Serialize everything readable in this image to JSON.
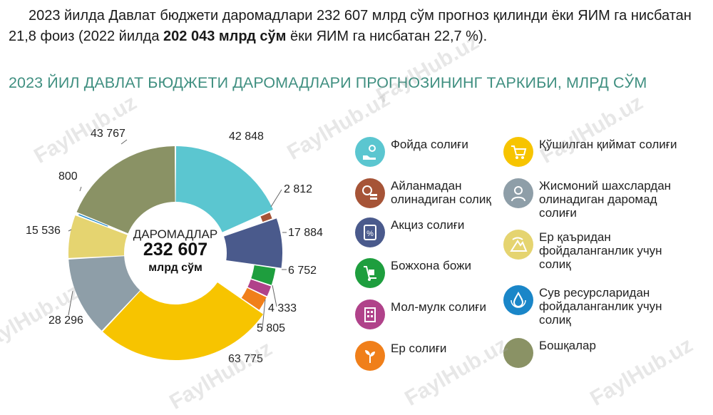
{
  "intro": {
    "part1": "2023 йилда Давлат бюджети даромадлари 232 607 млрд сўм прогноз қилинди ёки ЯИМ га нисбатан 21,8 фоиз (2022 йилда ",
    "bold": "202 043 млрд сўм",
    "part2": " ёки ЯИМ га нисбатан 22,7 %)."
  },
  "heading": "2023 ЙИЛ ДАВЛАТ БЮДЖЕТИ ДАРОМАДЛАРИ ПРОГНОЗИНИНГ ТАРКИБИ, МЛРД СЎМ",
  "watermark": "FaylHub.uz",
  "chart_data": {
    "type": "donut",
    "center": {
      "line1": "ДАРОМАДЛАР",
      "line2": "232 607",
      "line3": "млрд сўм"
    },
    "total": 232607,
    "slices": [
      {
        "label": "Фойда солиғи",
        "value": 42848,
        "value_text": "42 848",
        "color": "#5bc6d0",
        "icon": "coin-hand-icon"
      },
      {
        "label": "Айланмадан олинадиган солиқ",
        "value": 2812,
        "value_text": "2 812",
        "color": "#a65437",
        "icon": "coins-stack-icon"
      },
      {
        "label": "Акциз солиғи",
        "value": 17884,
        "value_text": "17 884",
        "color": "#4a5a8c",
        "icon": "percent-document-icon"
      },
      {
        "label": "Божхона божи",
        "value": 6752,
        "value_text": "6 752",
        "color": "#1e9e3e",
        "icon": "hand-truck-icon"
      },
      {
        "label": "Мол-мулк солиғи",
        "value": 4333,
        "value_text": "4 333",
        "color": "#b0428a",
        "icon": "building-icon"
      },
      {
        "label": "Ер солиғи",
        "value": 5805,
        "value_text": "5 805",
        "color": "#f07f1a",
        "icon": "sprout-icon"
      },
      {
        "label": "Қўшилган қиймат солиғи",
        "value": 63775,
        "value_text": "63 775",
        "color": "#f7c400",
        "icon": "shopping-cart-icon"
      },
      {
        "label": "Жисмоний шахслардан олинадиган даромад солиғи",
        "value": 28296,
        "value_text": "28 296",
        "color": "#8e9ea8",
        "icon": "person-icon"
      },
      {
        "label": "Ер қаъридан фойдаланганлик учун солиқ",
        "value": 15536,
        "value_text": "15 536",
        "color": "#e5d470",
        "icon": "mining-icon"
      },
      {
        "label": "Сув ресурсларидан фойдаланганлик учун солиқ",
        "value": 800,
        "value_text": "800",
        "color": "#1a86c8",
        "icon": "water-drop-icon"
      },
      {
        "label": "Бошқалар",
        "value": 43767,
        "value_text": "43 767",
        "color": "#8a9265",
        "icon": ""
      }
    ]
  }
}
